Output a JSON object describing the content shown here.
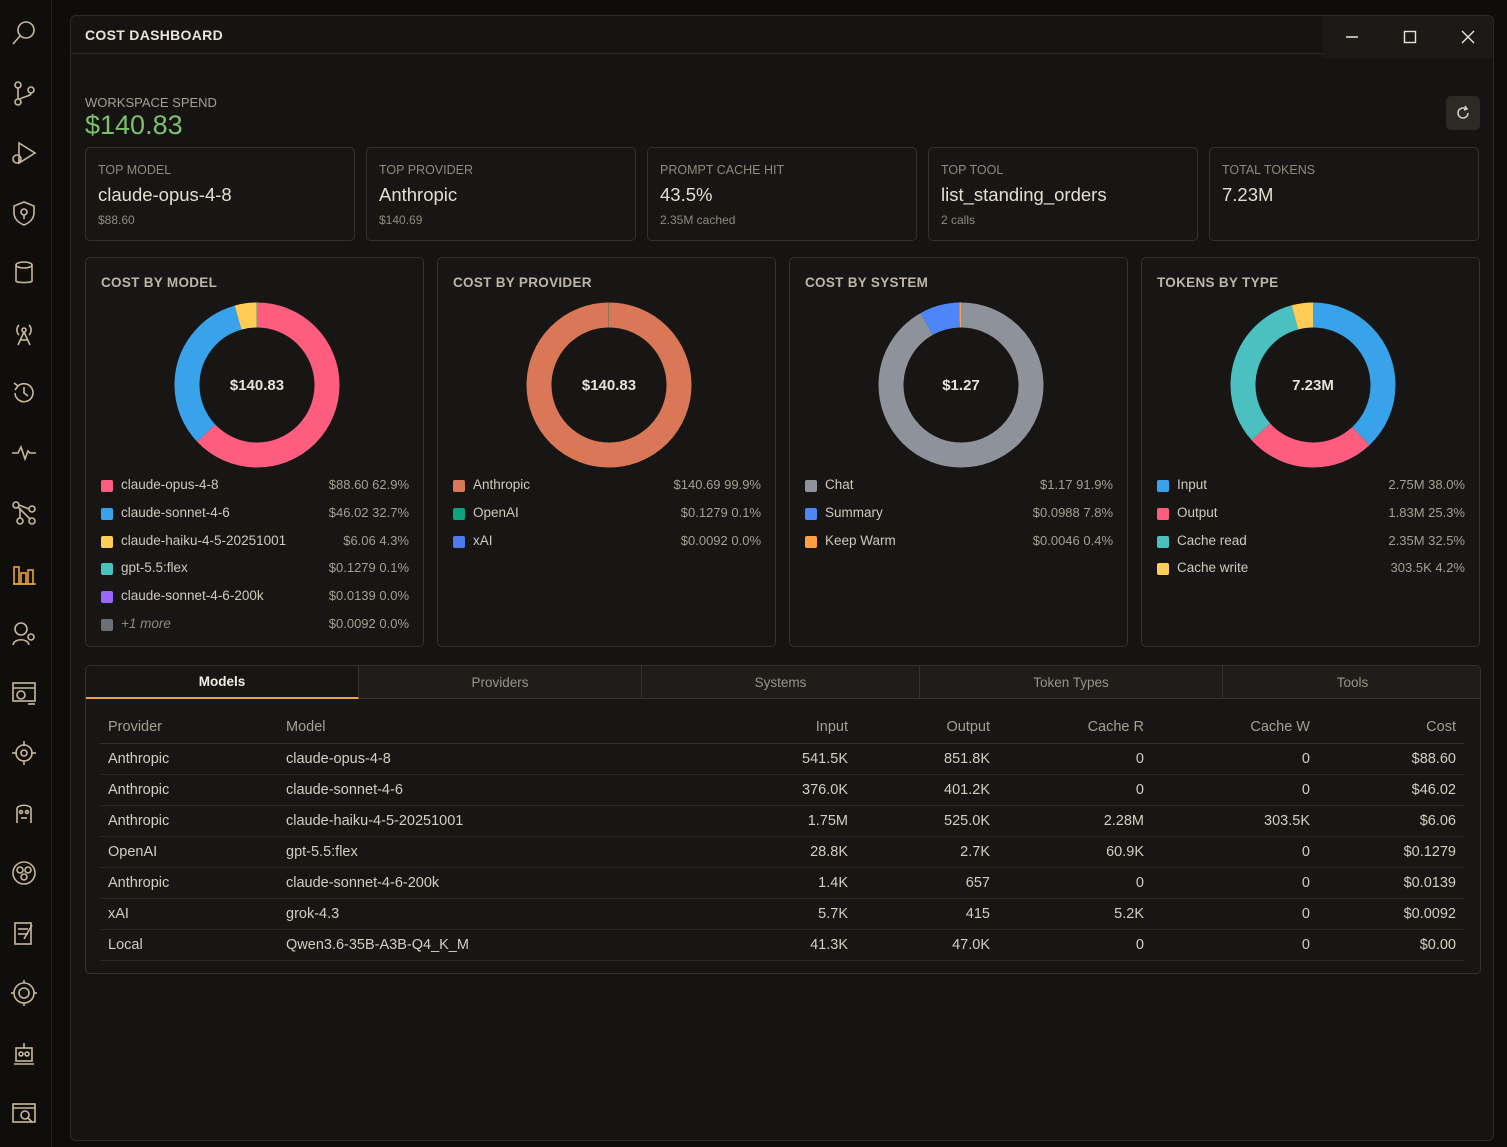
{
  "window": {
    "title": "COST DASHBOARD"
  },
  "sidebar_icons": [
    "search-icon",
    "git-branch-icon",
    "debug-icon",
    "shield-icon",
    "database-icon",
    "antenna-icon",
    "history-icon",
    "pulse-icon",
    "graph-icon",
    "bar-chart-icon",
    "agent-icon",
    "browser-icon",
    "target-icon",
    "face-icon",
    "group-icon",
    "notes-icon",
    "gear-face-icon",
    "robot-icon",
    "window-search-icon"
  ],
  "workspace": {
    "label": "WORKSPACE SPEND",
    "value": "$140.83"
  },
  "cards": [
    {
      "label": "TOP MODEL",
      "value": "claude-opus-4-8",
      "sub": "$88.60"
    },
    {
      "label": "TOP PROVIDER",
      "value": "Anthropic",
      "sub": "$140.69"
    },
    {
      "label": "PROMPT CACHE HIT",
      "value": "43.5%",
      "sub": "2.35M cached"
    },
    {
      "label": "TOP TOOL",
      "value": "list_standing_orders",
      "sub": "2 calls"
    },
    {
      "label": "TOTAL TOKENS",
      "value": "7.23M",
      "sub": ""
    }
  ],
  "chart_data": [
    {
      "type": "pie",
      "title": "COST BY MODEL",
      "center": "$140.83",
      "slices": [
        {
          "name": "claude-opus-4-8",
          "display": "$88.60 62.9%",
          "value": 62.9,
          "color": "#ff5d7e"
        },
        {
          "name": "claude-sonnet-4-6",
          "display": "$46.02 32.7%",
          "value": 32.7,
          "color": "#38a3eb"
        },
        {
          "name": "claude-haiku-4-5-20251001",
          "display": "$6.06 4.3%",
          "value": 4.3,
          "color": "#ffcd56"
        },
        {
          "name": "gpt-5.5:flex",
          "display": "$0.1279 0.1%",
          "value": 0.1,
          "color": "#4bc0c0"
        },
        {
          "name": "claude-sonnet-4-6-200k",
          "display": "$0.0139 0.0%",
          "value": 0.0,
          "color": "#9966ff"
        },
        {
          "name": "+1 more",
          "display": "$0.0092 0.0%",
          "value": 0.0,
          "color": "#6b6f78",
          "more": true
        }
      ]
    },
    {
      "type": "pie",
      "title": "COST BY PROVIDER",
      "center": "$140.83",
      "slices": [
        {
          "name": "Anthropic",
          "display": "$140.69 99.9%",
          "value": 99.9,
          "color": "#d97757"
        },
        {
          "name": "OpenAI",
          "display": "$0.1279 0.1%",
          "value": 0.1,
          "color": "#10a37f"
        },
        {
          "name": "xAI",
          "display": "$0.0092 0.0%",
          "value": 0.0,
          "color": "#4b7bec"
        }
      ]
    },
    {
      "type": "pie",
      "title": "COST BY SYSTEM",
      "center": "$1.27",
      "slices": [
        {
          "name": "Chat",
          "display": "$1.17 91.9%",
          "value": 91.9,
          "color": "#8e929b"
        },
        {
          "name": "Summary",
          "display": "$0.0988 7.8%",
          "value": 7.8,
          "color": "#4f86f7"
        },
        {
          "name": "Keep Warm",
          "display": "$0.0046 0.4%",
          "value": 0.4,
          "color": "#ff9f40"
        }
      ]
    },
    {
      "type": "pie",
      "title": "TOKENS BY TYPE",
      "center": "7.23M",
      "slices": [
        {
          "name": "Input",
          "display": "2.75M 38.0%",
          "value": 38.0,
          "color": "#38a3eb"
        },
        {
          "name": "Output",
          "display": "1.83M 25.3%",
          "value": 25.3,
          "color": "#ff5d7e"
        },
        {
          "name": "Cache read",
          "display": "2.35M 32.5%",
          "value": 32.5,
          "color": "#4bc0c0"
        },
        {
          "name": "Cache write",
          "display": "303.5K 4.2%",
          "value": 4.2,
          "color": "#ffcd56"
        }
      ]
    }
  ],
  "tabs": [
    "Models",
    "Providers",
    "Systems",
    "Token Types",
    "Tools"
  ],
  "active_tab": "Models",
  "table": {
    "headers": [
      "Provider",
      "Model",
      "Input",
      "Output",
      "Cache R",
      "Cache W",
      "Cost"
    ],
    "rows": [
      [
        "Anthropic",
        "claude-opus-4-8",
        "541.5K",
        "851.8K",
        "0",
        "0",
        "$88.60"
      ],
      [
        "Anthropic",
        "claude-sonnet-4-6",
        "376.0K",
        "401.2K",
        "0",
        "0",
        "$46.02"
      ],
      [
        "Anthropic",
        "claude-haiku-4-5-20251001",
        "1.75M",
        "525.0K",
        "2.28M",
        "303.5K",
        "$6.06"
      ],
      [
        "OpenAI",
        "gpt-5.5:flex",
        "28.8K",
        "2.7K",
        "60.9K",
        "0",
        "$0.1279"
      ],
      [
        "Anthropic",
        "claude-sonnet-4-6-200k",
        "1.4K",
        "657",
        "0",
        "0",
        "$0.0139"
      ],
      [
        "xAI",
        "grok-4.3",
        "5.7K",
        "415",
        "5.2K",
        "0",
        "$0.0092"
      ],
      [
        "Local",
        "Qwen3.6-35B-A3B-Q4_K_M",
        "41.3K",
        "47.0K",
        "0",
        "0",
        "$0.00"
      ]
    ]
  }
}
